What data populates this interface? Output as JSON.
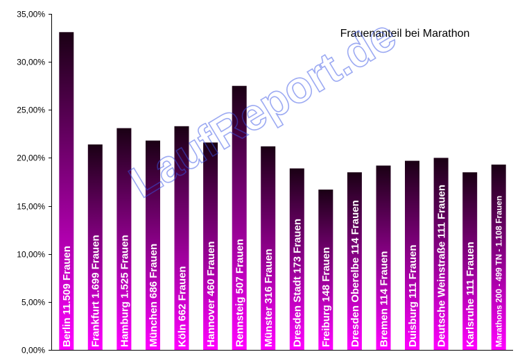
{
  "chart_data": {
    "type": "bar",
    "title": "Frauenanteil bei Marathon",
    "xlabel": "",
    "ylabel": "",
    "ylim": [
      0,
      35
    ],
    "y_ticks": [
      "0,00%",
      "5,00%",
      "10,00%",
      "15,00%",
      "20,00%",
      "25,00%",
      "30,00%",
      "35,00%"
    ],
    "categories": [
      "Berlin  11.509  Frauen",
      "Frankfurt  1.699  Frauen",
      "Hamburg  1.525 Frauen",
      "München 686 Frauen",
      "Köln  662  Frauen",
      "Hannover  460  Frauen",
      "Rennsteig  507  Frauen",
      "Münster  316  Frauen",
      "Dresden Stadt 173 Frauen",
      "Freiburg 148 Frauen",
      "Dresden Oberelbe 114 Frauen",
      "Bremen 114 Frauen",
      "Duisburg 111 Frauen",
      "Deutsche Weinstraße 111 Frauen",
      "Karlsruhe 111 Frauen",
      "Marathons 200 - 499 TN - 1.108 Frauen"
    ],
    "values": [
      33.1,
      21.4,
      23.1,
      21.8,
      23.3,
      21.6,
      27.5,
      21.2,
      18.9,
      16.7,
      18.5,
      19.2,
      19.7,
      20.0,
      18.5,
      19.3
    ],
    "grid": false,
    "legend": "none",
    "colors": {
      "bar_top": "#1a0014",
      "bar_bottom": "#ff00ff",
      "label": "#ffffff",
      "watermark": "#3a55e6"
    }
  },
  "watermark": "LaufReport.de"
}
